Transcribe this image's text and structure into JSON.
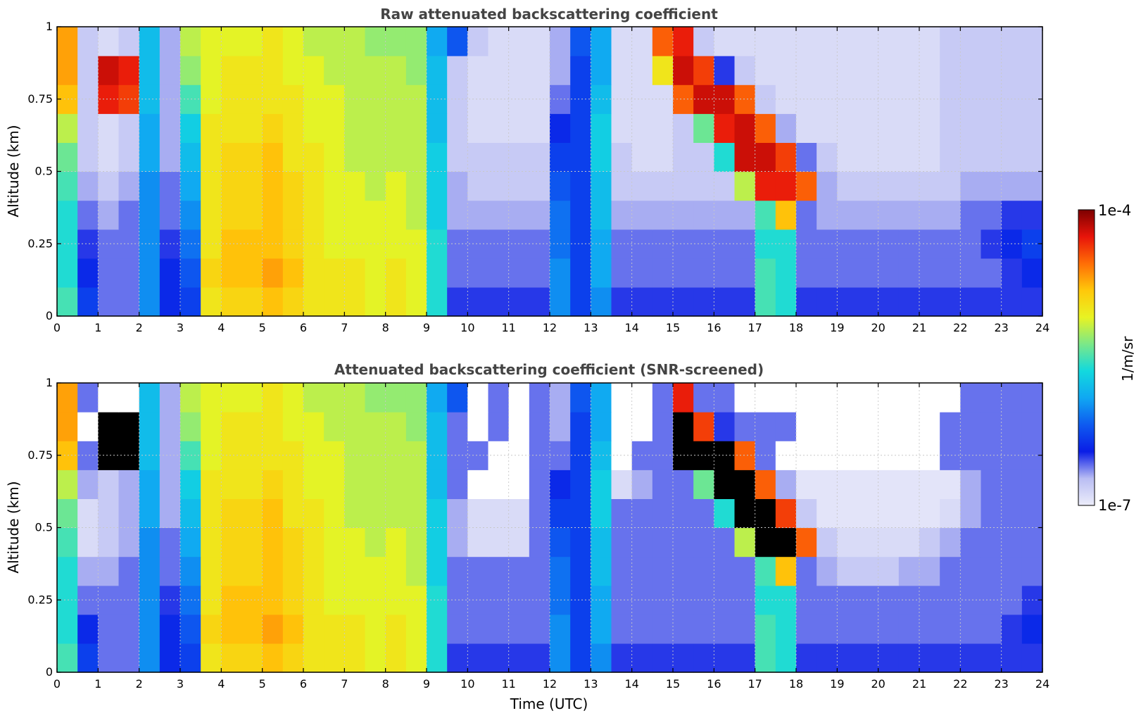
{
  "figure": {
    "colorbar": {
      "label": "1/m/sr",
      "max_label": "1e-4",
      "min_label": "1e-7",
      "scale": "log",
      "range": [
        1e-07,
        0.0001
      ],
      "colormap": [
        "#ecedfa",
        "#b9bdf3",
        "#0a1de6",
        "#0e5af0",
        "#10a8f2",
        "#12d9de",
        "#7ae889",
        "#e8f323",
        "#ffc80a",
        "#ff6e06",
        "#e8140a",
        "#7d0000"
      ]
    }
  },
  "chart_data": [
    {
      "type": "heatmap",
      "id": "raw",
      "title": "Raw attenuated backscattering coefficient",
      "xlabel": "",
      "ylabel": "Altitude (km)",
      "xlim": [
        0,
        24
      ],
      "ylim": [
        0,
        1
      ],
      "x_ticks": [
        "0",
        "1",
        "2",
        "3",
        "4",
        "5",
        "6",
        "7",
        "8",
        "9",
        "10",
        "11",
        "12",
        "13",
        "14",
        "15",
        "16",
        "17",
        "18",
        "19",
        "20",
        "21",
        "22",
        "23",
        "24"
      ],
      "y_ticks": [
        "0",
        "0.25",
        "0.5",
        "0.75",
        "1"
      ],
      "grid": true,
      "x": [
        0.25,
        0.75,
        1.25,
        1.75,
        2.25,
        2.75,
        3.25,
        3.75,
        4.25,
        4.75,
        5.25,
        5.75,
        6.25,
        6.75,
        7.25,
        7.75,
        8.25,
        8.75,
        9.25,
        9.75,
        10.25,
        10.75,
        11.25,
        11.75,
        12.25,
        12.75,
        13.25,
        13.75,
        14.25,
        14.75,
        15.25,
        15.75,
        16.25,
        16.75,
        17.25,
        17.75,
        18.25,
        18.75,
        19.25,
        19.75,
        20.25,
        20.75,
        21.25,
        21.75,
        22.25,
        22.75,
        23.25,
        23.75
      ],
      "y": [
        0.05,
        0.15,
        0.25,
        0.35,
        0.45,
        0.55,
        0.65,
        0.75,
        0.85,
        0.95
      ],
      "log10_values": [
        [
          -5.5,
          -6.3,
          -6.6,
          -6.6,
          -6.0,
          -6.4,
          -6.3,
          -5.0,
          -4.9,
          -4.9,
          -4.8,
          -4.9,
          -5.0,
          -5.0,
          -5.0,
          -5.1,
          -5.0,
          -5.1,
          -5.6,
          -6.5,
          -6.5,
          -6.5,
          -6.5,
          -6.5,
          -6.0,
          -6.3,
          -6.0,
          -6.5,
          -6.5,
          -6.5,
          -6.5,
          -6.5,
          -6.5,
          -6.5,
          -5.5,
          -5.6,
          -6.5,
          -6.5,
          -6.5,
          -6.5,
          -6.5,
          -6.5,
          -6.5,
          -6.5,
          -6.5,
          -6.5,
          -6.5,
          -6.5
        ],
        [
          -5.6,
          -6.4,
          -6.6,
          -6.6,
          -6.0,
          -6.4,
          -6.2,
          -4.9,
          -4.8,
          -4.8,
          -4.7,
          -4.8,
          -5.0,
          -5.0,
          -5.0,
          -5.1,
          -5.0,
          -5.1,
          -5.6,
          -6.6,
          -6.6,
          -6.6,
          -6.6,
          -6.6,
          -6.0,
          -6.3,
          -5.9,
          -6.6,
          -6.6,
          -6.6,
          -6.6,
          -6.6,
          -6.6,
          -6.6,
          -5.5,
          -5.6,
          -6.6,
          -6.6,
          -6.6,
          -6.6,
          -6.6,
          -6.6,
          -6.6,
          -6.6,
          -6.6,
          -6.6,
          -6.5,
          -6.4
        ],
        [
          -5.6,
          -6.5,
          -6.6,
          -6.6,
          -6.0,
          -6.5,
          -6.1,
          -5.0,
          -4.8,
          -4.8,
          -4.8,
          -4.9,
          -5.0,
          -5.1,
          -5.1,
          -5.1,
          -5.1,
          -5.1,
          -5.6,
          -6.6,
          -6.6,
          -6.6,
          -6.6,
          -6.6,
          -6.1,
          -6.3,
          -5.9,
          -6.6,
          -6.6,
          -6.6,
          -6.6,
          -6.6,
          -6.6,
          -6.6,
          -5.6,
          -5.6,
          -6.6,
          -6.6,
          -6.6,
          -6.6,
          -6.6,
          -6.6,
          -6.6,
          -6.6,
          -6.6,
          -6.5,
          -6.4,
          -6.3
        ],
        [
          -5.6,
          -6.6,
          -6.7,
          -6.6,
          -6.0,
          -6.6,
          -6.0,
          -5.0,
          -4.9,
          -4.9,
          -4.8,
          -4.9,
          -5.0,
          -5.1,
          -5.1,
          -5.1,
          -5.1,
          -5.2,
          -5.7,
          -6.7,
          -6.7,
          -6.7,
          -6.7,
          -6.7,
          -6.1,
          -6.3,
          -5.8,
          -6.7,
          -6.7,
          -6.7,
          -6.7,
          -6.7,
          -6.7,
          -6.7,
          -5.5,
          -4.8,
          -6.6,
          -6.7,
          -6.7,
          -6.7,
          -6.7,
          -6.7,
          -6.7,
          -6.7,
          -6.6,
          -6.6,
          -6.5,
          -6.5
        ],
        [
          -5.5,
          -6.7,
          -6.8,
          -6.7,
          -6.0,
          -6.6,
          -5.9,
          -5.0,
          -4.9,
          -4.9,
          -4.8,
          -4.9,
          -5.0,
          -5.1,
          -5.1,
          -5.2,
          -5.1,
          -5.2,
          -5.7,
          -6.7,
          -6.8,
          -6.8,
          -6.8,
          -6.8,
          -6.2,
          -6.3,
          -5.8,
          -6.8,
          -6.8,
          -6.8,
          -6.8,
          -6.8,
          -6.8,
          -5.2,
          -4.3,
          -4.3,
          -4.5,
          -6.7,
          -6.8,
          -6.8,
          -6.8,
          -6.8,
          -6.8,
          -6.8,
          -6.7,
          -6.7,
          -6.7,
          -6.7
        ],
        [
          -5.4,
          -6.8,
          -6.9,
          -6.8,
          -5.9,
          -6.7,
          -5.8,
          -5.0,
          -4.9,
          -4.9,
          -4.8,
          -5.0,
          -5.0,
          -5.1,
          -5.2,
          -5.2,
          -5.2,
          -5.2,
          -5.7,
          -6.8,
          -6.8,
          -6.8,
          -6.8,
          -6.8,
          -6.3,
          -6.3,
          -5.7,
          -6.8,
          -6.9,
          -6.9,
          -6.8,
          -6.8,
          -5.6,
          -4.2,
          -4.2,
          -4.4,
          -6.6,
          -6.8,
          -6.9,
          -6.9,
          -6.9,
          -6.9,
          -6.9,
          -6.8,
          -6.8,
          -6.8,
          -6.8,
          -6.8
        ],
        [
          -5.2,
          -6.8,
          -6.9,
          -6.8,
          -5.9,
          -6.7,
          -5.7,
          -5.0,
          -5.0,
          -5.0,
          -4.9,
          -5.0,
          -5.1,
          -5.1,
          -5.2,
          -5.2,
          -5.2,
          -5.2,
          -5.8,
          -6.8,
          -6.9,
          -6.9,
          -6.9,
          -6.9,
          -6.4,
          -6.3,
          -5.7,
          -6.9,
          -6.9,
          -6.9,
          -6.8,
          -5.4,
          -4.3,
          -4.2,
          -4.5,
          -6.7,
          -6.9,
          -6.9,
          -6.9,
          -6.9,
          -6.9,
          -6.9,
          -6.9,
          -6.8,
          -6.8,
          -6.8,
          -6.8,
          -6.8
        ],
        [
          -4.8,
          -6.8,
          -4.3,
          -4.4,
          -5.8,
          -6.7,
          -5.5,
          -5.1,
          -5.0,
          -5.0,
          -5.0,
          -5.0,
          -5.1,
          -5.1,
          -5.2,
          -5.2,
          -5.2,
          -5.2,
          -5.8,
          -6.8,
          -6.9,
          -6.9,
          -6.9,
          -6.9,
          -6.6,
          -6.3,
          -5.8,
          -6.9,
          -6.9,
          -6.9,
          -4.5,
          -4.2,
          -4.2,
          -4.5,
          -6.8,
          -6.9,
          -6.9,
          -6.9,
          -6.9,
          -6.9,
          -6.9,
          -6.9,
          -6.9,
          -6.8,
          -6.8,
          -6.8,
          -6.8,
          -6.8
        ],
        [
          -4.7,
          -6.8,
          -4.2,
          -4.3,
          -5.8,
          -6.7,
          -5.3,
          -5.1,
          -5.0,
          -5.0,
          -5.0,
          -5.1,
          -5.1,
          -5.2,
          -5.2,
          -5.2,
          -5.2,
          -5.3,
          -5.8,
          -6.8,
          -6.9,
          -6.9,
          -6.9,
          -6.9,
          -6.7,
          -6.3,
          -5.9,
          -6.9,
          -6.9,
          -5.0,
          -4.2,
          -4.4,
          -6.5,
          -6.8,
          -6.9,
          -6.9,
          -6.9,
          -6.9,
          -6.9,
          -6.9,
          -6.9,
          -6.9,
          -6.9,
          -6.8,
          -6.8,
          -6.8,
          -6.8,
          -6.8
        ],
        [
          -4.7,
          -6.8,
          -6.9,
          -6.8,
          -5.8,
          -6.7,
          -5.2,
          -5.1,
          -5.1,
          -5.1,
          -5.0,
          -5.1,
          -5.2,
          -5.2,
          -5.2,
          -5.3,
          -5.3,
          -5.3,
          -5.9,
          -6.2,
          -6.8,
          -6.9,
          -6.9,
          -6.9,
          -6.7,
          -6.2,
          -5.9,
          -6.9,
          -6.9,
          -4.5,
          -4.3,
          -6.8,
          -6.9,
          -6.9,
          -6.9,
          -6.9,
          -6.9,
          -6.9,
          -6.9,
          -6.9,
          -6.9,
          -6.9,
          -6.9,
          -6.8,
          -6.8,
          -6.8,
          -6.8,
          -6.8
        ]
      ]
    },
    {
      "type": "heatmap",
      "id": "screened",
      "title": "Attenuated backscattering coefficient (SNR-screened)",
      "xlabel": "Time (UTC)",
      "ylabel": "Altitude (km)",
      "xlim": [
        0,
        24
      ],
      "ylim": [
        0,
        1
      ],
      "x_ticks": [
        "0",
        "1",
        "2",
        "3",
        "4",
        "5",
        "6",
        "7",
        "8",
        "9",
        "10",
        "11",
        "12",
        "13",
        "14",
        "15",
        "16",
        "17",
        "18",
        "19",
        "20",
        "21",
        "22",
        "23",
        "24"
      ],
      "y_ticks": [
        "0",
        "0.25",
        "0.5",
        "0.75",
        "1"
      ],
      "grid": true,
      "masked_value": "white (below SNR threshold)",
      "saturated_value": "black (above color scale)",
      "x": [
        0.25,
        0.75,
        1.25,
        1.75,
        2.25,
        2.75,
        3.25,
        3.75,
        4.25,
        4.75,
        5.25,
        5.75,
        6.25,
        6.75,
        7.25,
        7.75,
        8.25,
        8.75,
        9.25,
        9.75,
        10.25,
        10.75,
        11.25,
        11.75,
        12.25,
        12.75,
        13.25,
        13.75,
        14.25,
        14.75,
        15.25,
        15.75,
        16.25,
        16.75,
        17.25,
        17.75,
        18.25,
        18.75,
        19.25,
        19.75,
        20.25,
        20.75,
        21.25,
        21.75,
        22.25,
        22.75,
        23.25,
        23.75
      ],
      "y": [
        0.05,
        0.15,
        0.25,
        0.35,
        0.45,
        0.55,
        0.65,
        0.75,
        0.85,
        0.95
      ],
      "log10_values": [
        [
          -5.5,
          -6.3,
          -6.6,
          -6.6,
          -6.0,
          -6.4,
          -6.3,
          -5.0,
          -4.9,
          -4.9,
          -4.8,
          -4.9,
          -5.0,
          -5.0,
          -5.0,
          -5.1,
          -5.0,
          -5.1,
          -5.6,
          -6.5,
          -6.5,
          -6.5,
          -6.5,
          -6.5,
          -6.0,
          -6.3,
          -6.0,
          -6.5,
          -6.5,
          -6.5,
          -6.5,
          -6.5,
          -6.5,
          -6.5,
          -5.5,
          -5.6,
          -6.5,
          -6.5,
          -6.5,
          -6.5,
          -6.5,
          -6.5,
          -6.5,
          -6.5,
          -6.5,
          -6.5,
          -6.5,
          -6.5
        ],
        [
          -5.6,
          -6.4,
          -6.6,
          -6.6,
          -6.0,
          -6.4,
          -6.2,
          -4.9,
          -4.8,
          -4.8,
          -4.7,
          -4.8,
          -5.0,
          -5.0,
          -5.0,
          -5.1,
          -5.0,
          -5.1,
          -5.6,
          -6.6,
          -6.6,
          -6.6,
          -6.6,
          -6.6,
          -6.0,
          -6.3,
          -5.9,
          -6.6,
          -6.6,
          -6.6,
          -6.6,
          -6.6,
          -6.6,
          -6.6,
          -5.5,
          -5.6,
          -6.6,
          -6.6,
          -6.6,
          -6.6,
          -6.6,
          -6.6,
          -6.6,
          -6.6,
          -6.6,
          -6.6,
          -6.5,
          -6.4
        ],
        [
          -5.6,
          -6.6,
          -6.6,
          -6.6,
          -6.0,
          -6.5,
          -6.1,
          -5.0,
          -4.8,
          -4.8,
          -4.8,
          -4.9,
          -5.0,
          -5.1,
          -5.1,
          -5.1,
          -5.1,
          -5.1,
          -5.6,
          -6.6,
          -6.6,
          -6.6,
          -6.6,
          -6.6,
          -6.1,
          -6.3,
          -5.9,
          -6.6,
          -6.6,
          -6.6,
          -6.6,
          -6.6,
          -6.6,
          -6.6,
          -5.6,
          -5.6,
          -6.6,
          -6.6,
          -6.6,
          -6.6,
          -6.6,
          -6.6,
          -6.6,
          -6.6,
          -6.6,
          -6.6,
          -6.6,
          -6.5
        ],
        [
          -5.6,
          -6.7,
          -6.7,
          -6.6,
          -6.0,
          -6.6,
          -6.0,
          -5.0,
          -4.9,
          -4.9,
          -4.8,
          -4.9,
          -5.0,
          -5.1,
          -5.1,
          -5.1,
          -5.1,
          -5.2,
          -5.7,
          -6.6,
          -6.6,
          -6.6,
          -6.6,
          -6.6,
          -6.1,
          -6.3,
          -5.8,
          -6.6,
          -6.6,
          -6.6,
          -6.6,
          -6.6,
          -6.6,
          -6.6,
          -5.5,
          -4.8,
          -6.6,
          -6.7,
          -6.8,
          -6.8,
          -6.8,
          -6.7,
          -6.7,
          -6.6,
          -6.6,
          -6.6,
          -6.6,
          -6.6
        ],
        [
          -5.5,
          -6.9,
          -6.8,
          -6.7,
          -6.0,
          -6.6,
          -5.9,
          -5.0,
          -4.9,
          -4.9,
          -4.8,
          -4.9,
          -5.0,
          -5.1,
          -5.1,
          -5.2,
          -5.1,
          -5.2,
          -5.7,
          -6.7,
          -6.9,
          -6.9,
          -6.9,
          -6.6,
          -6.2,
          -6.3,
          -5.8,
          -6.6,
          -6.6,
          -6.6,
          -6.6,
          -6.6,
          -6.6,
          -5.2,
          -3.8,
          -3.8,
          -4.5,
          -6.8,
          -6.9,
          -6.9,
          -6.9,
          -6.9,
          -6.8,
          -6.7,
          -6.6,
          -6.6,
          -6.6,
          -6.6
        ],
        [
          -5.4,
          -6.9,
          -6.8,
          -6.7,
          -5.9,
          -6.7,
          -5.8,
          -5.0,
          -4.9,
          -4.9,
          -4.8,
          -5.0,
          -5.0,
          -5.1,
          -5.2,
          -5.2,
          -5.2,
          -5.2,
          -5.7,
          -6.7,
          -6.9,
          -6.9,
          -6.9,
          -6.6,
          -6.3,
          -6.3,
          -5.7,
          -6.6,
          -6.6,
          -6.6,
          -6.6,
          -6.6,
          -5.6,
          -3.8,
          -3.8,
          -4.4,
          -6.8,
          -6.95,
          -6.95,
          -6.95,
          -6.95,
          -6.95,
          -6.95,
          -6.9,
          -6.7,
          -6.6,
          -6.6,
          -6.6
        ],
        [
          -5.2,
          -6.7,
          -6.8,
          -6.7,
          -5.9,
          -6.7,
          -5.7,
          -5.0,
          -5.0,
          -5.0,
          -4.9,
          -5.0,
          -5.1,
          -5.1,
          -5.2,
          -5.2,
          -5.2,
          -5.2,
          -5.8,
          -6.6,
          null,
          null,
          null,
          -6.6,
          -6.4,
          -6.3,
          -5.7,
          -6.9,
          -6.7,
          -6.6,
          -6.6,
          -5.4,
          -3.8,
          -3.8,
          -4.5,
          -6.7,
          -6.95,
          -6.95,
          -6.95,
          -6.95,
          -6.95,
          -6.95,
          -6.95,
          -6.95,
          -6.7,
          -6.6,
          -6.6,
          -6.6
        ],
        [
          -4.8,
          -6.6,
          -3.8,
          -3.8,
          -5.8,
          -6.7,
          -5.5,
          -5.1,
          -5.0,
          -5.0,
          -5.0,
          -5.0,
          -5.1,
          -5.1,
          -5.2,
          -5.2,
          -5.2,
          -5.2,
          -5.8,
          -6.6,
          -6.6,
          null,
          null,
          -6.6,
          -6.6,
          -6.3,
          -5.8,
          null,
          -6.6,
          -6.6,
          -3.8,
          -3.8,
          -3.8,
          -4.5,
          -6.6,
          null,
          null,
          null,
          null,
          null,
          null,
          null,
          null,
          -6.6,
          -6.6,
          -6.6,
          -6.6,
          -6.6
        ],
        [
          -4.7,
          null,
          -3.8,
          -3.8,
          -5.8,
          -6.7,
          -5.3,
          -5.1,
          -5.0,
          -5.0,
          -5.0,
          -5.1,
          -5.1,
          -5.2,
          -5.2,
          -5.2,
          -5.2,
          -5.3,
          -5.8,
          -6.6,
          null,
          -6.6,
          null,
          -6.6,
          -6.7,
          -6.3,
          -5.9,
          null,
          null,
          -6.6,
          -3.8,
          -4.4,
          -6.5,
          -6.6,
          -6.6,
          -6.6,
          null,
          null,
          null,
          null,
          null,
          null,
          null,
          -6.6,
          -6.6,
          -6.6,
          -6.6,
          -6.6
        ],
        [
          -4.7,
          -6.6,
          null,
          null,
          -5.8,
          -6.7,
          -5.2,
          -5.1,
          -5.1,
          -5.1,
          -5.0,
          -5.1,
          -5.2,
          -5.2,
          -5.2,
          -5.3,
          -5.3,
          -5.3,
          -5.9,
          -6.2,
          null,
          -6.6,
          null,
          -6.6,
          -6.7,
          -6.2,
          -5.9,
          null,
          null,
          -6.6,
          -4.3,
          -6.6,
          -6.6,
          null,
          null,
          null,
          null,
          null,
          null,
          null,
          null,
          null,
          null,
          null,
          -6.6,
          -6.6,
          -6.6,
          -6.6
        ]
      ]
    }
  ]
}
